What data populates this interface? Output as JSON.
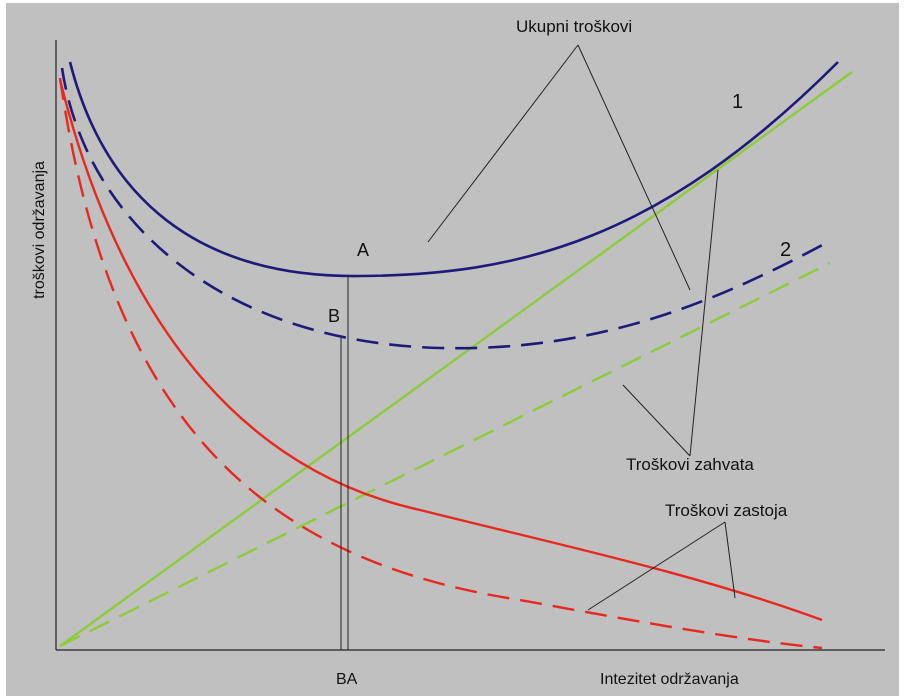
{
  "labels": {
    "ylabel": "troškovi održavanja",
    "xlabel": "Intezitet održavanja",
    "x_marks": "BA",
    "point_A": "A",
    "point_B": "B",
    "curve_1": "1",
    "curve_2": "2",
    "total_costs": "Ukupni troškovi",
    "intervention_costs": "Troškovi zahvata",
    "downtime_costs": "Troškovi zastoja"
  },
  "colors": {
    "background": "#c0c0c0",
    "total": "#1f1a7a",
    "intervention": "#8ccc3a",
    "downtime": "#e8281e",
    "leader": "#222222",
    "axis": "#222222"
  }
}
